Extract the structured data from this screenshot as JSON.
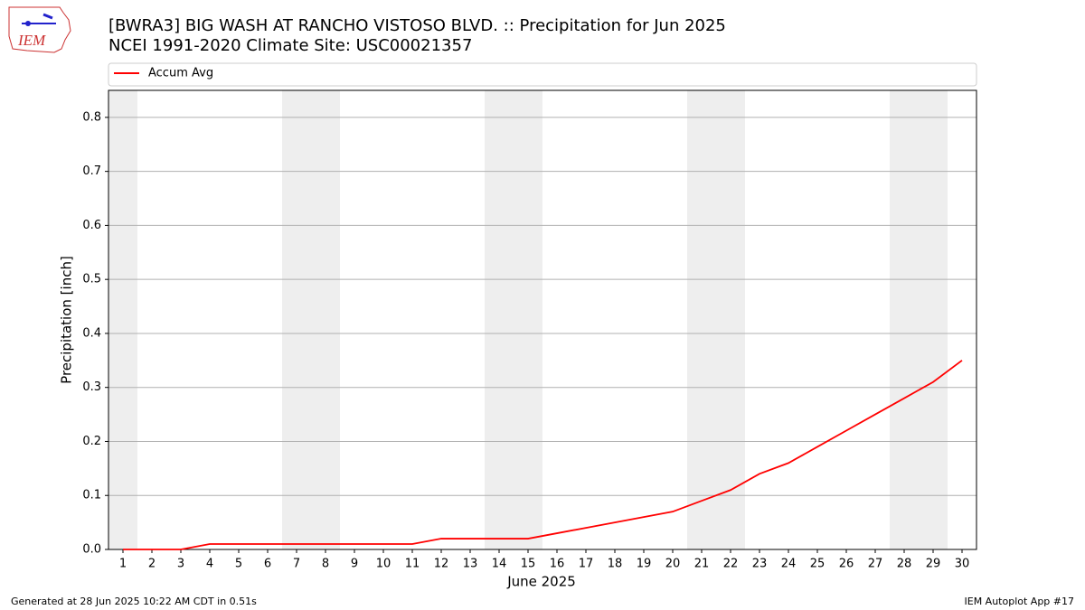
{
  "logo_text": "IEM",
  "footer_left": "Generated at 28 Jun 2025 10:22 AM CDT in 0.51s",
  "footer_right": "IEM Autoplot App #17",
  "chart_data": {
    "type": "line",
    "title": "[BWRA3] BIG WASH AT RANCHO VISTOSO BLVD. :: Precipitation for Jun 2025",
    "subtitle": "NCEI 1991-2020 Climate Site: USC00021357",
    "xlabel": "June 2025",
    "ylabel": "Precipitation [inch]",
    "x": [
      1,
      2,
      3,
      4,
      5,
      6,
      7,
      8,
      9,
      10,
      11,
      12,
      13,
      14,
      15,
      16,
      17,
      18,
      19,
      20,
      21,
      22,
      23,
      24,
      25,
      26,
      27,
      28,
      29,
      30
    ],
    "series": [
      {
        "name": "Accum Avg",
        "color": "#ff0000",
        "values": [
          0,
          0,
          0,
          0.01,
          0.01,
          0.01,
          0.01,
          0.01,
          0.01,
          0.01,
          0.01,
          0.02,
          0.02,
          0.02,
          0.02,
          0.03,
          0.04,
          0.05,
          0.06,
          0.07,
          0.09,
          0.11,
          0.14,
          0.16,
          0.19,
          0.22,
          0.25,
          0.28,
          0.31,
          0.35
        ]
      }
    ],
    "xlim": [
      0.5,
      30.5
    ],
    "ylim": [
      0,
      0.85
    ],
    "xticks": [
      1,
      2,
      3,
      4,
      5,
      6,
      7,
      8,
      9,
      10,
      11,
      12,
      13,
      14,
      15,
      16,
      17,
      18,
      19,
      20,
      21,
      22,
      23,
      24,
      25,
      26,
      27,
      28,
      29,
      30
    ],
    "yticks": [
      {
        "value": 0,
        "label": "0.0"
      },
      0.1,
      0.2,
      0.3,
      0.4,
      0.5,
      0.6,
      0.7,
      0.8
    ],
    "shaded_days": [
      1,
      7,
      8,
      14,
      15,
      21,
      22,
      28,
      29
    ],
    "shade_color": "#eeeeee",
    "grid": true,
    "legend": "top"
  }
}
